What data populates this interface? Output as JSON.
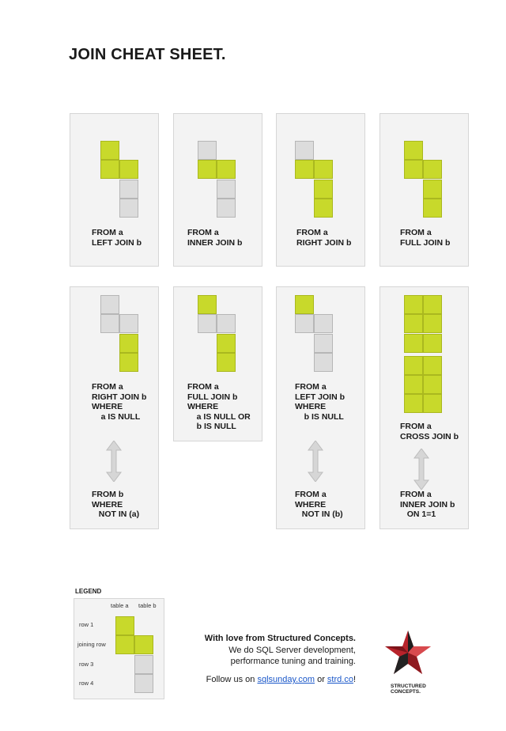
{
  "page": {
    "title": "JOIN CHEAT SHEET."
  },
  "joins": [
    {
      "lines": [
        "FROM a",
        "LEFT JOIN b"
      ]
    },
    {
      "lines": [
        "FROM a",
        "INNER JOIN b"
      ]
    },
    {
      "lines": [
        "FROM a",
        "RIGHT JOIN b"
      ]
    },
    {
      "lines": [
        "FROM a",
        "FULL JOIN b"
      ]
    },
    {
      "lines": [
        "FROM a",
        "RIGHT JOIN b",
        "WHERE",
        "    a IS NULL"
      ],
      "alt": [
        "FROM b",
        "WHERE",
        "   NOT IN (a)"
      ]
    },
    {
      "lines": [
        "FROM a",
        "FULL JOIN b",
        "WHERE",
        "    a IS NULL OR",
        "    b IS NULL"
      ]
    },
    {
      "lines": [
        "FROM a",
        "LEFT JOIN b",
        "WHERE",
        "    b IS NULL"
      ],
      "alt": [
        "FROM a",
        "WHERE",
        "   NOT IN (b)"
      ]
    },
    {
      "lines": [
        "FROM a",
        "CROSS JOIN b"
      ],
      "alt": [
        "FROM a",
        "INNER JOIN b",
        "   ON 1=1"
      ]
    }
  ],
  "legend": {
    "title": "LEGEND",
    "col_a": "table a",
    "col_b": "table b",
    "rows": [
      "row 1",
      "joining row",
      "row 3",
      "row 4"
    ]
  },
  "footer": {
    "headline": "With love from Structured Concepts.",
    "line1": "We do SQL Server development,",
    "line2": "performance tuning and training.",
    "follow_prefix": "Follow us on ",
    "link1": "sqlsunday.com",
    "or_text": " or ",
    "link2": "strd.co",
    "suffix": "!"
  },
  "logo": {
    "text": "STRUCTURED\nCONCEPTS."
  },
  "colors": {
    "included": "#c8d92b",
    "excluded": "#dcdcdc"
  }
}
